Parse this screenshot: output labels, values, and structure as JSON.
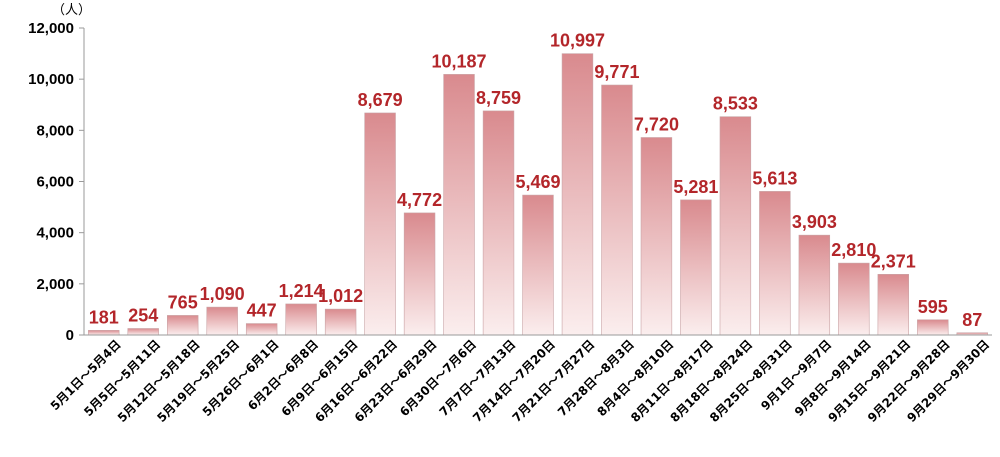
{
  "chart_data": {
    "type": "bar",
    "title": "",
    "xlabel": "",
    "ylabel": "（人）",
    "ylim": [
      0,
      12000
    ],
    "yticks": [
      0,
      2000,
      4000,
      6000,
      8000,
      10000,
      12000
    ],
    "ytick_labels": [
      "0",
      "2,000",
      "4,000",
      "6,000",
      "8,000",
      "10,000",
      "12,000"
    ],
    "grid": false,
    "legend": "none",
    "bar_color_top": "#d98a8e",
    "bar_color_bottom": "#fbeeee",
    "label_color": "#b3262a",
    "categories": [
      "5月1日～5月4日",
      "5月5日～5月11日",
      "5月12日～5月18日",
      "5月19日～5月25日",
      "5月26日～6月1日",
      "6月2日～6月8日",
      "6月9日～6月15日",
      "6月16日～6月22日",
      "6月23日～6月29日",
      "6月30日～7月6日",
      "7月7日～7月13日",
      "7月14日～7月20日",
      "7月21日～7月27日",
      "7月28日～8月3日",
      "8月4日～8月10日",
      "8月11日～8月17日",
      "8月18日～8月24日",
      "8月25日～8月31日",
      "9月1日～9月7日",
      "9月8日～9月14日",
      "9月15日～9月21日",
      "9月22日～9月28日",
      "9月29日～9月30日"
    ],
    "values": [
      181,
      254,
      765,
      1090,
      447,
      1214,
      1012,
      8679,
      4772,
      10187,
      8759,
      5469,
      10997,
      9771,
      7720,
      5281,
      8533,
      5613,
      3903,
      2810,
      2371,
      595,
      87
    ],
    "value_labels": [
      "181",
      "254",
      "765",
      "1,090",
      "447",
      "1,214",
      "1,012",
      "8,679",
      "4,772",
      "10,187",
      "8,759",
      "5,469",
      "10,997",
      "9,771",
      "7,720",
      "5,281",
      "8,533",
      "5,613",
      "3,903",
      "2,810",
      "2,371",
      "595",
      "87"
    ]
  }
}
